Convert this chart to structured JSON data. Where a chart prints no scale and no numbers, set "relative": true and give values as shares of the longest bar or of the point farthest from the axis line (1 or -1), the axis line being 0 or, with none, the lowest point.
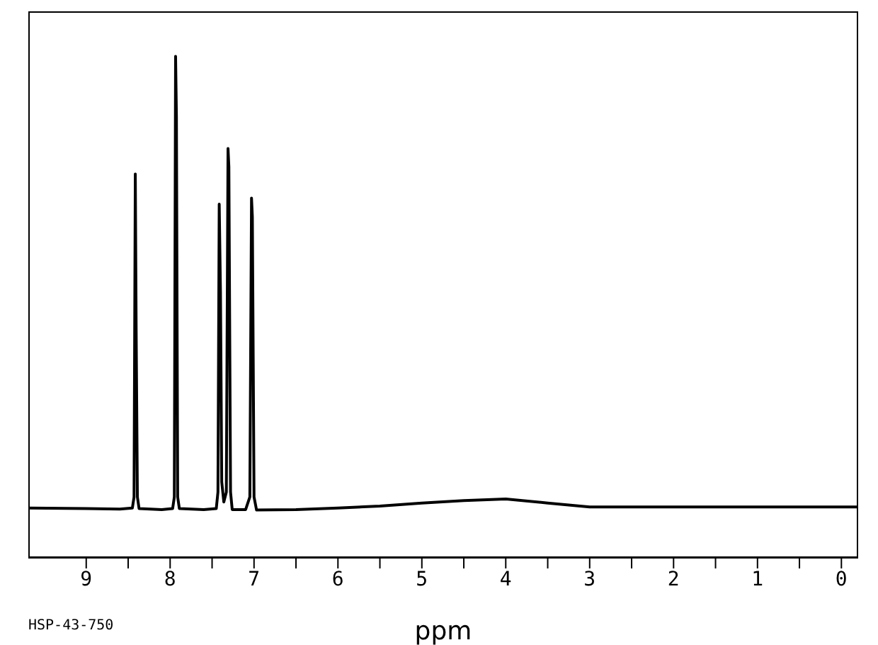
{
  "chart_data": {
    "type": "line",
    "relative": true,
    "xlabel": "ppm",
    "annotations": [
      "HSP-43-750"
    ],
    "xlim": [
      9.69,
      -0.2
    ],
    "xticks": [
      9,
      {
        "value": 8.5,
        "label": null
      },
      8,
      {
        "value": 7.5,
        "label": null
      },
      7,
      {
        "value": 6.5,
        "label": null
      },
      6,
      {
        "value": 5.5,
        "label": null
      },
      5,
      {
        "value": 4.5,
        "label": null
      },
      4,
      {
        "value": 3.5,
        "label": null
      },
      3,
      {
        "value": 2.5,
        "label": null
      },
      2,
      {
        "value": 1.5,
        "label": null
      },
      1,
      {
        "value": 0.5,
        "label": null
      },
      0
    ],
    "marker": "none",
    "line_style": "solid",
    "tick_labels": "x",
    "x": [
      9.69,
      9.0,
      8.6,
      8.45,
      8.43,
      8.415,
      8.405,
      8.39,
      8.37,
      8.1,
      7.97,
      7.95,
      7.935,
      7.925,
      7.91,
      7.89,
      7.6,
      7.45,
      7.43,
      7.415,
      7.4,
      7.385,
      7.36,
      7.33,
      7.31,
      7.3,
      7.28,
      7.26,
      7.1,
      7.05,
      7.03,
      7.02,
      7.0,
      6.97,
      6.5,
      6.0,
      5.5,
      5.0,
      4.5,
      4.0,
      3.5,
      3.0,
      2.5,
      2.0,
      1.0,
      0.0,
      -0.2
    ],
    "series": [
      {
        "color": "#000000",
        "values": [
          0.098,
          0.097,
          0.096,
          0.098,
          0.12,
          0.765,
          0.456,
          0.12,
          0.097,
          0.095,
          0.097,
          0.12,
          1.0,
          0.88,
          0.12,
          0.097,
          0.095,
          0.097,
          0.13,
          0.705,
          0.53,
          0.15,
          0.11,
          0.13,
          0.816,
          0.78,
          0.13,
          0.095,
          0.095,
          0.12,
          0.717,
          0.68,
          0.12,
          0.094,
          0.095,
          0.098,
          0.102,
          0.108,
          0.113,
          0.116,
          0.108,
          0.1,
          0.1,
          0.1,
          0.1,
          0.1,
          0.1
        ]
      }
    ]
  }
}
